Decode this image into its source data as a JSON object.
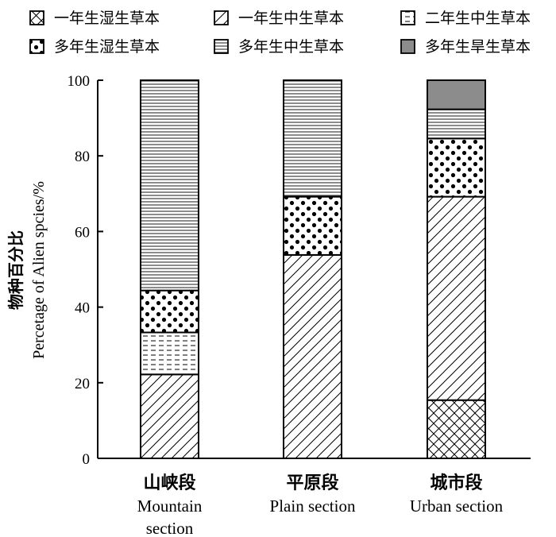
{
  "chart_data": {
    "type": "bar",
    "stacked": true,
    "categories": [
      {
        "cn": "山峡段",
        "en_lines": [
          "Mountain",
          "section"
        ]
      },
      {
        "cn": "平原段",
        "en_lines": [
          "Plain section"
        ]
      },
      {
        "cn": "城市段",
        "en_lines": [
          "Urban section"
        ]
      }
    ],
    "series": [
      {
        "name": "一年生湿生草本",
        "pattern": "crosshatch",
        "values": [
          0,
          0,
          15.4
        ]
      },
      {
        "name": "一年生中生草本",
        "pattern": "diagonal",
        "values": [
          22.2,
          53.8,
          53.8
        ]
      },
      {
        "name": "二年生中生草本",
        "pattern": "dashes",
        "values": [
          11.1,
          0,
          0
        ]
      },
      {
        "name": "多年生湿生草本",
        "pattern": "dots",
        "values": [
          11.1,
          15.4,
          15.4
        ]
      },
      {
        "name": "多年生中生草本",
        "pattern": "horizontal-lines",
        "values": [
          55.6,
          30.8,
          7.7
        ]
      },
      {
        "name": "多年生旱生草本",
        "pattern": "solid-gray",
        "values": [
          0,
          0,
          7.7
        ]
      }
    ],
    "ylabel_cn": "物种百分比",
    "ylabel_en": "Percetage of Alien spcies/%",
    "ylim": [
      0,
      100
    ],
    "yticks": [
      "0",
      "20",
      "40",
      "60",
      "80",
      "100"
    ],
    "legend_position": "top",
    "grid": false
  }
}
